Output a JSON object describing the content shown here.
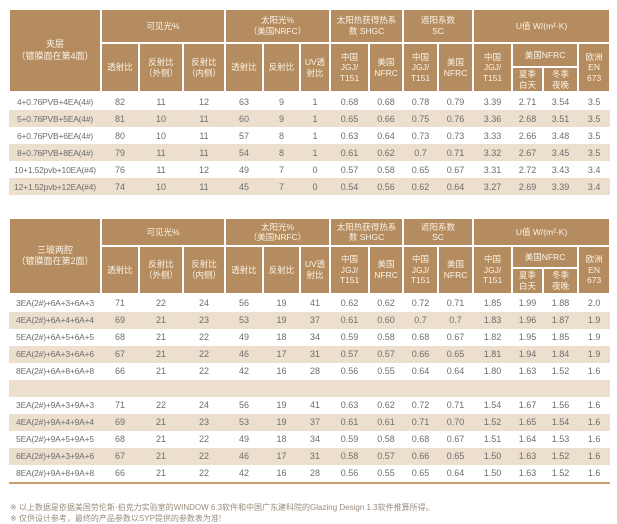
{
  "colors": {
    "header_bg": "#b58c5f",
    "header_text": "#faf3e7",
    "stripe_bg": "#ecdfcd",
    "body_text": "#6e6e6e",
    "table_bottom_rule": "#c9a06b",
    "footnote_text": "#998c7c"
  },
  "headers": {
    "visible_light": "可见光%",
    "solar": "太阳光%\n（美国NRFC）",
    "shgc": "太阳热获得热系\n数 SHGC",
    "sc": "遮阳系数\nSC",
    "u_value": "U值 W/(m²·K)",
    "transmittance": "透射比",
    "reflectance_out": "反射比\n（外侧）",
    "reflectance_in": "反射比\n（内侧）",
    "reflectance": "反射比",
    "uv_transmittance": "UV透\n射比",
    "china_jgj": "中国\nJGJ/\nT151",
    "us_nfrc": "美国\nNFRC",
    "us_nfrc_wide": "美国NFRC",
    "summer_day": "夏季\n白天",
    "winter_night": "冬季\n夜晚",
    "europe_en": "欧洲\nEN\n673"
  },
  "tables": [
    {
      "title": "夹层\n（镀膜面在第4面）",
      "groups": [
        {
          "rows": [
            {
              "name": "4+0.76PVB+4EA(4#)",
              "values": [
                "82",
                "11",
                "12",
                "63",
                "9",
                "1",
                "0.68",
                "0.68",
                "0.78",
                "0.79",
                "3.39",
                "2.71",
                "3.54",
                "3.5"
              ]
            },
            {
              "name": "5+0.76PVB+5EA(4#)",
              "values": [
                "81",
                "10",
                "11",
                "60",
                "9",
                "1",
                "0.65",
                "0.66",
                "0.75",
                "0.76",
                "3.36",
                "2.68",
                "3.51",
                "3.5"
              ]
            },
            {
              "name": "6+0.76PVB+6EA(4#)",
              "values": [
                "80",
                "10",
                "11",
                "57",
                "8",
                "1",
                "0.63",
                "0.64",
                "0.73",
                "0.73",
                "3.33",
                "2.66",
                "3.48",
                "3.5"
              ]
            },
            {
              "name": "8+0.76PVB+8EA(4#)",
              "values": [
                "79",
                "11",
                "11",
                "54",
                "8",
                "1",
                "0.61",
                "0.62",
                "0.7",
                "0.71",
                "3.32",
                "2.67",
                "3.45",
                "3.5"
              ]
            },
            {
              "name": "10+1.52pvb+10EA(#4)",
              "values": [
                "76",
                "11",
                "12",
                "49",
                "7",
                "0",
                "0.57",
                "0.58",
                "0.65",
                "0.67",
                "3.31",
                "2.72",
                "3.43",
                "3.4"
              ]
            },
            {
              "name": "12+1.52pvb+12EA(#4)",
              "values": [
                "74",
                "10",
                "11",
                "45",
                "7",
                "0",
                "0.54",
                "0.56",
                "0.62",
                "0.64",
                "3.27",
                "2.69",
                "3.39",
                "3.4"
              ]
            }
          ]
        }
      ]
    },
    {
      "title": "三玻两腔\n（镀膜面在第2面）",
      "groups": [
        {
          "rows": [
            {
              "name": "3EA(2#)+6A+3+6A+3",
              "values": [
                "71",
                "22",
                "24",
                "56",
                "19",
                "41",
                "0.62",
                "0.62",
                "0.72",
                "0.71",
                "1.85",
                "1.99",
                "1.88",
                "2.0"
              ]
            },
            {
              "name": "4EA(2#)+6A+4+6A+4",
              "values": [
                "69",
                "21",
                "23",
                "53",
                "19",
                "37",
                "0.61",
                "0.60",
                "0.7",
                "0.7",
                "1.83",
                "1.96",
                "1.87",
                "1.9"
              ]
            },
            {
              "name": "5EA(2#)+6A+5+6A+5",
              "values": [
                "68",
                "21",
                "22",
                "49",
                "18",
                "34",
                "0.59",
                "0.58",
                "0.68",
                "0.67",
                "1.82",
                "1.95",
                "1.85",
                "1.9"
              ]
            },
            {
              "name": "6EA(2#)+6A+3+6A+6",
              "values": [
                "67",
                "21",
                "22",
                "46",
                "17",
                "31",
                "0.57",
                "0.57",
                "0.66",
                "0.65",
                "1.81",
                "1.94",
                "1.84",
                "1.9"
              ]
            },
            {
              "name": "8EA(2#)+6A+8+6A+8",
              "values": [
                "66",
                "21",
                "22",
                "42",
                "16",
                "28",
                "0.56",
                "0.55",
                "0.64",
                "0.64",
                "1.80",
                "1.63",
                "1.52",
                "1.6"
              ]
            }
          ]
        },
        {
          "rows": [
            {
              "name": "3EA(2#)+9A+3+9A+3",
              "values": [
                "71",
                "22",
                "24",
                "56",
                "19",
                "41",
                "0.63",
                "0.62",
                "0.72",
                "0.71",
                "1.54",
                "1.67",
                "1.56",
                "1.6"
              ]
            },
            {
              "name": "4EA(2#)+9A+4+9A+4",
              "values": [
                "69",
                "21",
                "23",
                "53",
                "19",
                "37",
                "0.61",
                "0.61",
                "0.71",
                "0.70",
                "1.52",
                "1.65",
                "1.54",
                "1.6"
              ]
            },
            {
              "name": "5EA(2#)+9A+5+9A+5",
              "values": [
                "68",
                "21",
                "22",
                "49",
                "18",
                "34",
                "0.59",
                "0.58",
                "0.68",
                "0.67",
                "1.51",
                "1.64",
                "1.53",
                "1.6"
              ]
            },
            {
              "name": "6EA(2#)+9A+3+9A+6",
              "values": [
                "67",
                "21",
                "22",
                "46",
                "17",
                "31",
                "0.58",
                "0.57",
                "0.66",
                "0.65",
                "1.50",
                "1.63",
                "1.52",
                "1.6"
              ]
            },
            {
              "name": "8EA(2#)+9A+8+9A+8",
              "values": [
                "66",
                "21",
                "22",
                "42",
                "16",
                "28",
                "0.56",
                "0.55",
                "0.65",
                "0.64",
                "1.50",
                "1.63",
                "1.52",
                "1.6"
              ]
            }
          ]
        }
      ]
    }
  ],
  "footnotes": [
    "※ 以上数据是依据美国劳伦斯·伯克力实验室的WINDOW 6.3软件和中国广东建科院的Glazing Design 1.3软件推算所得。",
    "※ 仅供设计参考，最终的产品参数以SYP提供的参数表为准!"
  ]
}
